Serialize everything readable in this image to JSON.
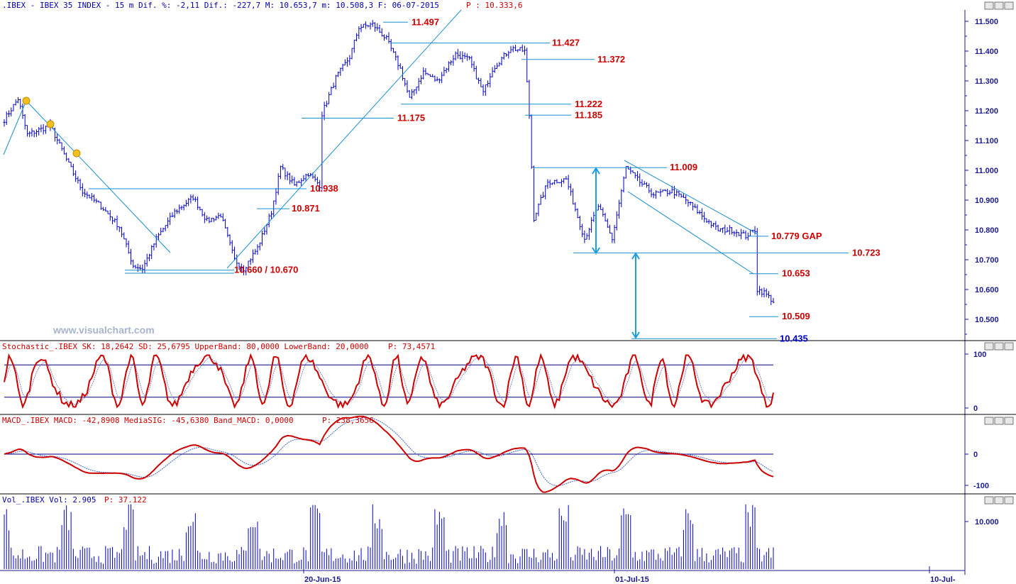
{
  "header": {
    "main": ".IBEX - IBEX 35 INDEX -  15 m Dif. %: -2,11 Dif.: -227,7 M: 10.653,7 m: 10.508,3 F: 06-07-2015",
    "price": "P : 10.333,6",
    "stoch": "Stochastic_.IBEX SK: 18,2642 SD: 25,6795 UpperBand: 80,0000 LowerBand: 20,0000",
    "stoch_p": "P: 73,4571",
    "macd": "MACD_.IBEX MACD: -42,8908 MediaSIG: -45,6380 Band_MACD: 0,0000",
    "macd_p": "P: 238,3656",
    "vol": "Vol_.IBEX Vol: 2.905",
    "vol_p": "P: 37.122"
  },
  "watermark": "www.visualchart.com",
  "colors": {
    "price": "#0000cc",
    "trendline": "#1a8fd0",
    "level_text": "#cc0000",
    "level_text_blue": "#0000cc",
    "oscillator": "#cc0000",
    "band": "#000080",
    "axis_text": "#1a1a8c"
  },
  "chart_data": [
    {
      "type": "candlestick",
      "title": "IBEX 35 INDEX 15 m",
      "x_ticks": [
        "20-Jun-15",
        "01-Jul-15",
        "10-Jul-"
      ],
      "y_ticks": [
        "11.500",
        "11.400",
        "11.300",
        "11.200",
        "11.100",
        "11.000",
        "10.900",
        "10.800",
        "10.700",
        "10.600",
        "10.500"
      ],
      "ylim": [
        10.435,
        11.51
      ],
      "anchors": [
        [
          0,
          11.17
        ],
        [
          6,
          11.24
        ],
        [
          10,
          11.12
        ],
        [
          20,
          11.15
        ],
        [
          28,
          11.02
        ],
        [
          34,
          10.93
        ],
        [
          42,
          10.88
        ],
        [
          50,
          10.81
        ],
        [
          56,
          10.68
        ],
        [
          60,
          10.67
        ],
        [
          66,
          10.77
        ],
        [
          74,
          10.86
        ],
        [
          82,
          10.91
        ],
        [
          88,
          10.83
        ],
        [
          94,
          10.85
        ],
        [
          100,
          10.7
        ],
        [
          104,
          10.67
        ],
        [
          110,
          10.74
        ],
        [
          116,
          10.86
        ],
        [
          120,
          11.01
        ],
        [
          126,
          10.95
        ],
        [
          132,
          10.99
        ],
        [
          137,
          10.95
        ],
        [
          138,
          11.19
        ],
        [
          144,
          11.31
        ],
        [
          150,
          11.38
        ],
        [
          154,
          11.48
        ],
        [
          160,
          11.49
        ],
        [
          166,
          11.44
        ],
        [
          172,
          11.34
        ],
        [
          176,
          11.24
        ],
        [
          182,
          11.33
        ],
        [
          188,
          11.3
        ],
        [
          196,
          11.39
        ],
        [
          202,
          11.37
        ],
        [
          208,
          11.26
        ],
        [
          212,
          11.34
        ],
        [
          220,
          11.41
        ],
        [
          226,
          11.4
        ],
        [
          228,
          11.185
        ],
        [
          230,
          10.84
        ],
        [
          236,
          10.96
        ],
        [
          244,
          10.97
        ],
        [
          252,
          10.77
        ],
        [
          258,
          10.88
        ],
        [
          264,
          10.77
        ],
        [
          270,
          11.01
        ],
        [
          276,
          10.96
        ],
        [
          282,
          10.92
        ],
        [
          290,
          10.93
        ],
        [
          296,
          10.9
        ],
        [
          304,
          10.84
        ],
        [
          310,
          10.8
        ],
        [
          316,
          10.8
        ],
        [
          322,
          10.78
        ],
        [
          326,
          10.8
        ],
        [
          327,
          10.6
        ],
        [
          330,
          10.59
        ],
        [
          334,
          10.56
        ]
      ],
      "bars": 335,
      "levels": [
        {
          "label": "11.497",
          "value": 11.497
        },
        {
          "label": "11.427",
          "value": 11.427
        },
        {
          "label": "11.372",
          "value": 11.372
        },
        {
          "label": "11.222",
          "value": 11.222
        },
        {
          "label": "11.185",
          "value": 11.185
        },
        {
          "label": "11.175",
          "value": 11.175
        },
        {
          "label": "11.009",
          "value": 11.009
        },
        {
          "label": "10.938",
          "value": 10.938
        },
        {
          "label": "10.871",
          "value": 10.871
        },
        {
          "label": "10.779 GAP",
          "value": 10.779
        },
        {
          "label": "10.723",
          "value": 10.723
        },
        {
          "label": "10.660 / 10.670",
          "value": 10.665
        },
        {
          "label": "10.653",
          "value": 10.653
        },
        {
          "label": "10.509",
          "value": 10.509
        },
        {
          "label": "10.435",
          "value": 10.435
        }
      ]
    },
    {
      "type": "line",
      "title": "Stochastic_.IBEX",
      "y_ticks": [
        "100",
        "0"
      ],
      "bands": [
        80,
        20
      ]
    },
    {
      "type": "line",
      "title": "MACD_.IBEX",
      "y_ticks": [
        "0",
        "-100"
      ],
      "band": 0
    },
    {
      "type": "bar",
      "title": "Vol_.IBEX",
      "y_ticks": [
        "10.000"
      ]
    }
  ]
}
